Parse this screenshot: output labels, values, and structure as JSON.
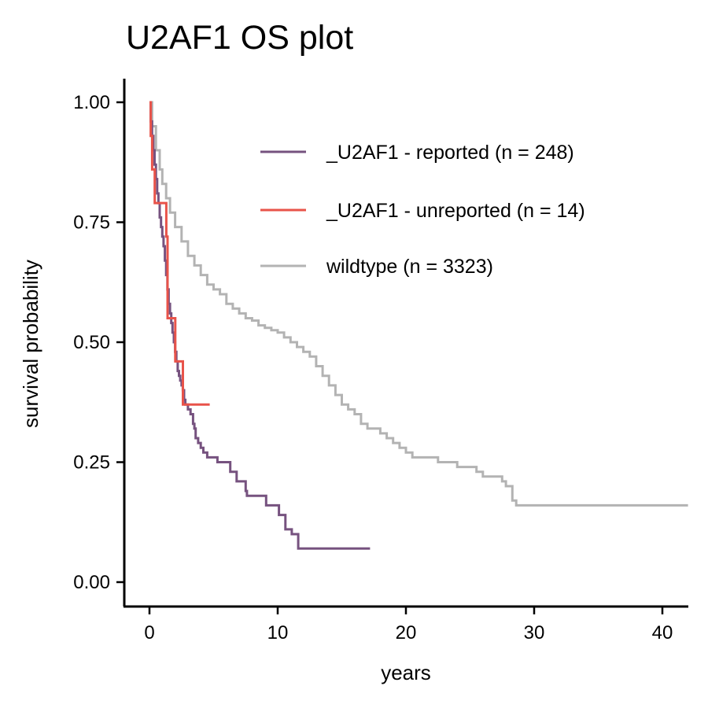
{
  "chart_data": {
    "type": "line",
    "subtype": "kaplan-meier step curve",
    "title": "U2AF1 OS plot",
    "xlabel": "years",
    "ylabel": "survival probability",
    "xlim": [
      -2,
      42
    ],
    "ylim": [
      -0.05,
      1.05
    ],
    "xticks": [
      0,
      10,
      20,
      30,
      40
    ],
    "yticks": [
      0.0,
      0.25,
      0.5,
      0.75,
      1.0
    ],
    "ytick_labels": [
      "0.00",
      "0.25",
      "0.50",
      "0.75",
      "1.00"
    ],
    "legend_position": "top-right (inside plot)",
    "grid": false,
    "series": [
      {
        "name": "_U2AF1 - reported (n = 248)",
        "color": "#76527f",
        "points": [
          [
            0,
            1.0
          ],
          [
            0.1,
            0.96
          ],
          [
            0.2,
            0.93
          ],
          [
            0.3,
            0.9
          ],
          [
            0.4,
            0.87
          ],
          [
            0.5,
            0.84
          ],
          [
            0.6,
            0.81
          ],
          [
            0.7,
            0.79
          ],
          [
            0.8,
            0.76
          ],
          [
            0.9,
            0.74
          ],
          [
            1.0,
            0.72
          ],
          [
            1.1,
            0.7
          ],
          [
            1.2,
            0.67
          ],
          [
            1.3,
            0.64
          ],
          [
            1.4,
            0.61
          ],
          [
            1.5,
            0.58
          ],
          [
            1.6,
            0.56
          ],
          [
            1.7,
            0.54
          ],
          [
            1.8,
            0.52
          ],
          [
            1.9,
            0.5
          ],
          [
            2.0,
            0.48
          ],
          [
            2.1,
            0.46
          ],
          [
            2.2,
            0.44
          ],
          [
            2.3,
            0.43
          ],
          [
            2.4,
            0.42
          ],
          [
            2.5,
            0.41
          ],
          [
            2.6,
            0.4
          ],
          [
            2.7,
            0.38
          ],
          [
            2.8,
            0.37
          ],
          [
            3.0,
            0.36
          ],
          [
            3.2,
            0.35
          ],
          [
            3.4,
            0.33
          ],
          [
            3.5,
            0.32
          ],
          [
            3.6,
            0.3
          ],
          [
            3.8,
            0.29
          ],
          [
            4.0,
            0.28
          ],
          [
            4.2,
            0.27
          ],
          [
            4.5,
            0.26
          ],
          [
            5.0,
            0.26
          ],
          [
            5.3,
            0.25
          ],
          [
            6.2,
            0.25
          ],
          [
            6.3,
            0.23
          ],
          [
            6.7,
            0.23
          ],
          [
            6.8,
            0.21
          ],
          [
            7.4,
            0.21
          ],
          [
            7.5,
            0.19
          ],
          [
            7.6,
            0.18
          ],
          [
            9.0,
            0.18
          ],
          [
            9.1,
            0.16
          ],
          [
            10.0,
            0.16
          ],
          [
            10.1,
            0.14
          ],
          [
            10.5,
            0.14
          ],
          [
            10.6,
            0.11
          ],
          [
            11.0,
            0.11
          ],
          [
            11.1,
            0.1
          ],
          [
            11.5,
            0.1
          ],
          [
            11.6,
            0.07
          ],
          [
            17.2,
            0.07
          ]
        ]
      },
      {
        "name": "_U2AF1 - unreported (n = 14)",
        "color": "#e8534a",
        "points": [
          [
            0,
            1.0
          ],
          [
            0.1,
            0.93
          ],
          [
            0.2,
            0.93
          ],
          [
            0.21,
            0.86
          ],
          [
            0.4,
            0.86
          ],
          [
            0.41,
            0.79
          ],
          [
            1.3,
            0.79
          ],
          [
            1.31,
            0.72
          ],
          [
            1.4,
            0.72
          ],
          [
            1.41,
            0.55
          ],
          [
            2.0,
            0.55
          ],
          [
            2.01,
            0.46
          ],
          [
            2.6,
            0.46
          ],
          [
            2.61,
            0.37
          ],
          [
            4.7,
            0.37
          ]
        ]
      },
      {
        "name": "wildtype (n = 3323)",
        "color": "#b3b3b3",
        "points": [
          [
            0,
            1.0
          ],
          [
            0.2,
            0.95
          ],
          [
            0.5,
            0.9
          ],
          [
            0.8,
            0.86
          ],
          [
            1.0,
            0.83
          ],
          [
            1.3,
            0.8
          ],
          [
            1.6,
            0.77
          ],
          [
            2.0,
            0.74
          ],
          [
            2.5,
            0.71
          ],
          [
            3.0,
            0.68
          ],
          [
            3.5,
            0.66
          ],
          [
            4.0,
            0.64
          ],
          [
            4.5,
            0.62
          ],
          [
            5.0,
            0.61
          ],
          [
            5.5,
            0.6
          ],
          [
            6.0,
            0.58
          ],
          [
            6.5,
            0.57
          ],
          [
            7.0,
            0.56
          ],
          [
            7.5,
            0.55
          ],
          [
            8.0,
            0.545
          ],
          [
            8.5,
            0.535
          ],
          [
            9.0,
            0.53
          ],
          [
            9.5,
            0.525
          ],
          [
            10.0,
            0.52
          ],
          [
            10.5,
            0.51
          ],
          [
            11.0,
            0.5
          ],
          [
            11.5,
            0.49
          ],
          [
            12.0,
            0.48
          ],
          [
            12.5,
            0.47
          ],
          [
            13.0,
            0.45
          ],
          [
            13.5,
            0.43
          ],
          [
            14.0,
            0.41
          ],
          [
            14.5,
            0.39
          ],
          [
            15.0,
            0.37
          ],
          [
            15.5,
            0.36
          ],
          [
            16.0,
            0.35
          ],
          [
            16.5,
            0.33
          ],
          [
            17.0,
            0.32
          ],
          [
            17.5,
            0.32
          ],
          [
            18.0,
            0.31
          ],
          [
            18.5,
            0.3
          ],
          [
            19.0,
            0.29
          ],
          [
            19.5,
            0.28
          ],
          [
            20.0,
            0.27
          ],
          [
            20.5,
            0.26
          ],
          [
            21.0,
            0.26
          ],
          [
            22.0,
            0.26
          ],
          [
            22.5,
            0.25
          ],
          [
            23.5,
            0.25
          ],
          [
            24.0,
            0.24
          ],
          [
            25.0,
            0.24
          ],
          [
            25.5,
            0.23
          ],
          [
            26.0,
            0.22
          ],
          [
            27.0,
            0.22
          ],
          [
            27.5,
            0.21
          ],
          [
            27.8,
            0.2
          ],
          [
            28.3,
            0.17
          ],
          [
            28.6,
            0.16
          ],
          [
            42,
            0.16
          ]
        ]
      }
    ]
  }
}
